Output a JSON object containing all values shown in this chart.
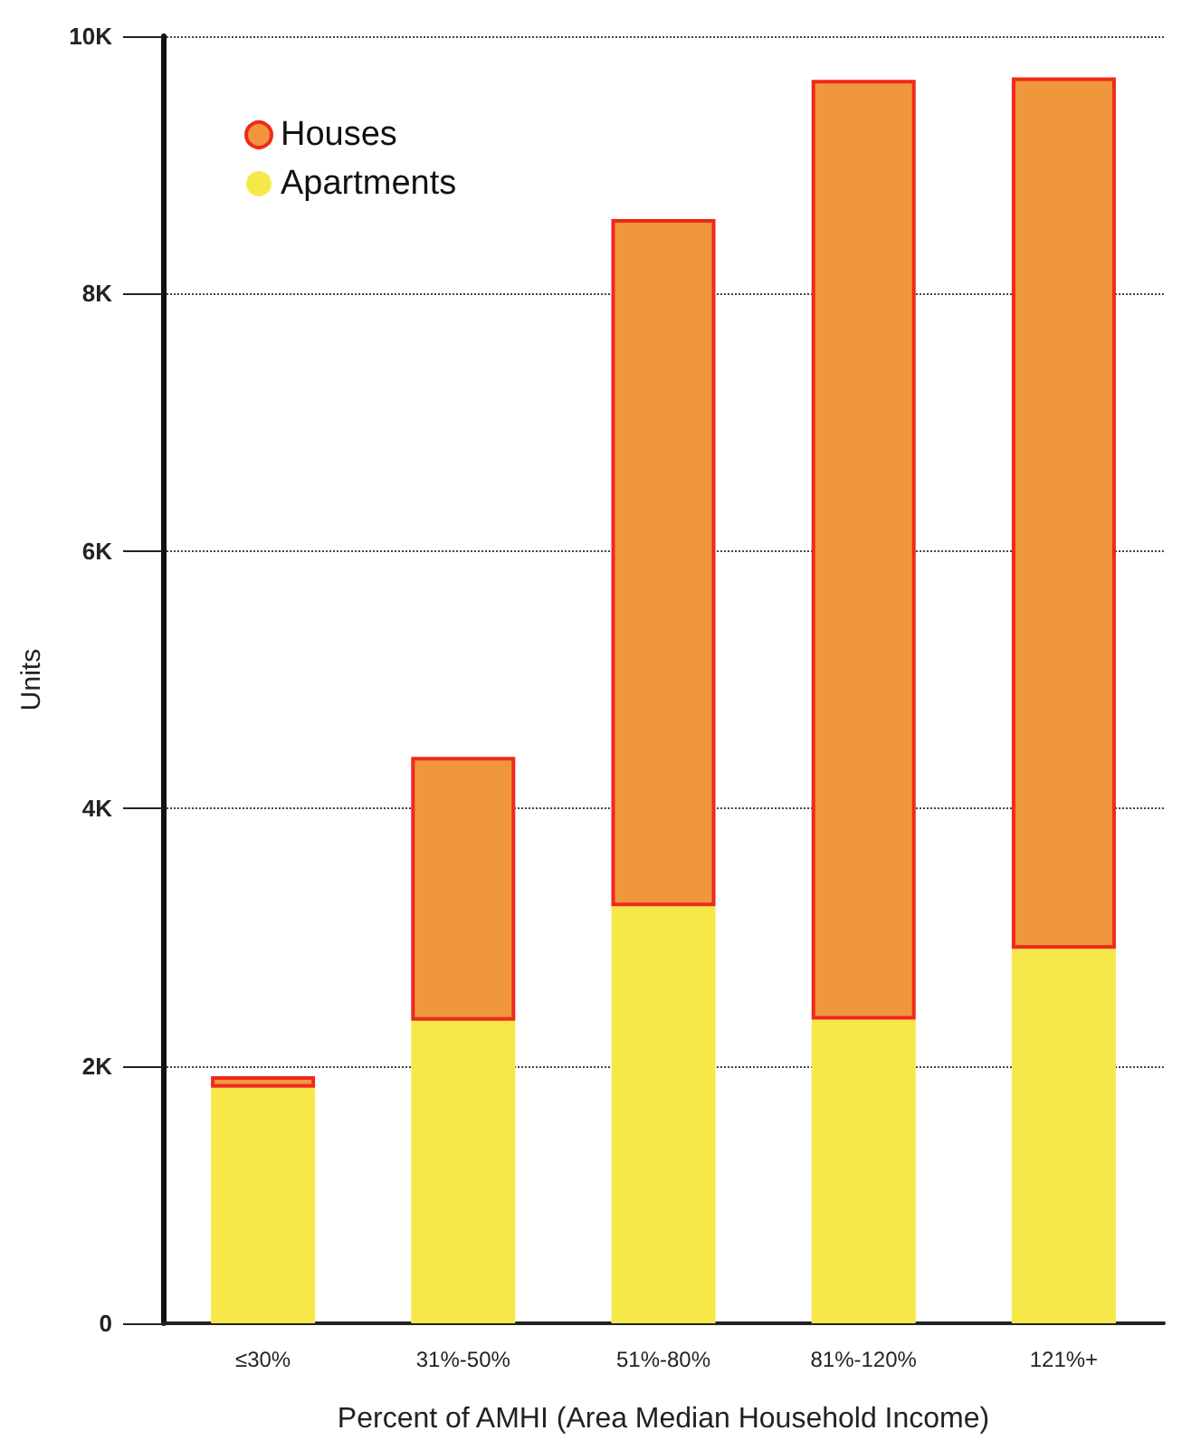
{
  "chart_data": {
    "type": "bar",
    "stacked": true,
    "xlabel": "Percent of AMHI (Area Median Household Income)",
    "ylabel": "Units",
    "categories": [
      "≤30%",
      "31%-50%",
      "51%-80%",
      "81%-120%",
      "121%+"
    ],
    "series": [
      {
        "name": "Apartments",
        "color": "#f7e84a",
        "values": [
          1830,
          2350,
          3240,
          2360,
          2910
        ]
      },
      {
        "name": "Houses",
        "color": "#f0963c",
        "values": [
          90,
          2050,
          5340,
          7300,
          6770
        ]
      }
    ],
    "ylim": [
      0,
      10000
    ],
    "yticks": [
      {
        "value": 0,
        "label": "0"
      },
      {
        "value": 2000,
        "label": "2K"
      },
      {
        "value": 4000,
        "label": "4K"
      },
      {
        "value": 6000,
        "label": "6K"
      },
      {
        "value": 8000,
        "label": "8K"
      },
      {
        "value": 10000,
        "label": "10K"
      }
    ],
    "grid": "y",
    "legend": "top left"
  }
}
